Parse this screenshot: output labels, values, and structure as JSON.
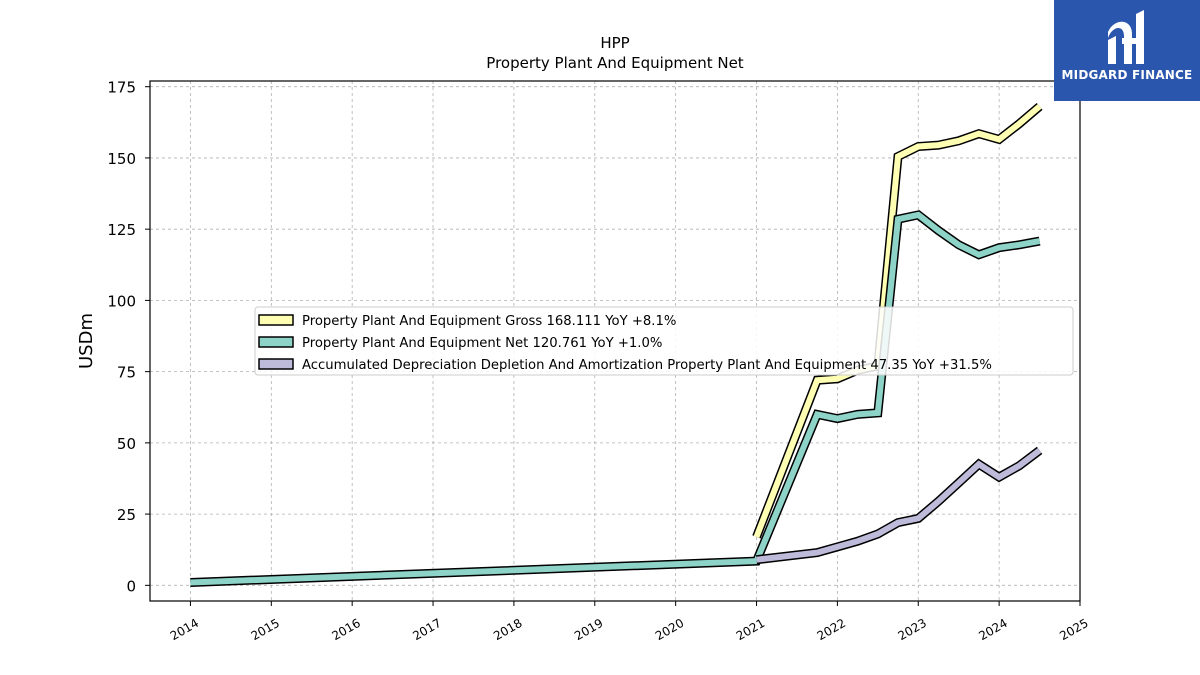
{
  "brand": {
    "name": "MIDGARD FINANCE",
    "logo_icon": "midgard-logo-icon",
    "color": "#2a56ad"
  },
  "chart_data": {
    "type": "line",
    "title": "HPP",
    "subtitle": "Property Plant And Equipment Net",
    "xlabel": "",
    "ylabel": "USDm",
    "xlim": [
      2013.5,
      2025.0
    ],
    "ylim": [
      -5.5,
      177
    ],
    "grid": true,
    "legend_position": "center-left",
    "x_ticks": [
      "2014",
      "2015",
      "2016",
      "2017",
      "2018",
      "2019",
      "2020",
      "2021",
      "2022",
      "2023",
      "2024",
      "2025"
    ],
    "y_ticks": [
      0,
      25,
      50,
      75,
      100,
      125,
      150,
      175
    ],
    "series": [
      {
        "name": "Property Plant And Equipment Gross",
        "legend_label": "Property Plant And Equipment Gross  168.111 YoY +8.1%",
        "color": "#ffffb3",
        "points": [
          [
            2021.0,
            17
          ],
          [
            2021.75,
            72
          ],
          [
            2022.0,
            72.5
          ],
          [
            2022.25,
            75.5
          ],
          [
            2022.5,
            77
          ],
          [
            2022.75,
            150.5
          ],
          [
            2023.0,
            154
          ],
          [
            2023.25,
            154.5
          ],
          [
            2023.5,
            156
          ],
          [
            2023.75,
            158.5
          ],
          [
            2024.0,
            156.5
          ],
          [
            2024.25,
            162
          ],
          [
            2024.5,
            168.1
          ]
        ]
      },
      {
        "name": "Property Plant And Equipment Net",
        "legend_label": "Property Plant And Equipment Net  120.761 YoY +1.0%",
        "color": "#8dd3c7",
        "points": [
          [
            2014.0,
            1
          ],
          [
            2021.0,
            8.5
          ],
          [
            2021.75,
            60
          ],
          [
            2022.0,
            58.5
          ],
          [
            2022.25,
            60
          ],
          [
            2022.5,
            60.5
          ],
          [
            2022.75,
            128.5
          ],
          [
            2023.0,
            130
          ],
          [
            2023.25,
            124.5
          ],
          [
            2023.5,
            119.5
          ],
          [
            2023.75,
            116
          ],
          [
            2024.0,
            118.5
          ],
          [
            2024.25,
            119.5
          ],
          [
            2024.5,
            120.8
          ]
        ]
      },
      {
        "name": "Accumulated Depreciation Depletion And Amortization Property Plant And Equipment",
        "legend_label": "Accumulated Depreciation Depletion And Amortization Property Plant And Equipment  47.35 YoY +31.5%",
        "color": "#bebada",
        "points": [
          [
            2021.0,
            9
          ],
          [
            2021.75,
            11.5
          ],
          [
            2022.0,
            13.5
          ],
          [
            2022.25,
            15.5
          ],
          [
            2022.5,
            18
          ],
          [
            2022.75,
            22
          ],
          [
            2023.0,
            23.5
          ],
          [
            2023.25,
            29.5
          ],
          [
            2023.5,
            36
          ],
          [
            2023.75,
            42.5
          ],
          [
            2024.0,
            38
          ],
          [
            2024.25,
            42
          ],
          [
            2024.5,
            47.35
          ]
        ]
      }
    ]
  }
}
